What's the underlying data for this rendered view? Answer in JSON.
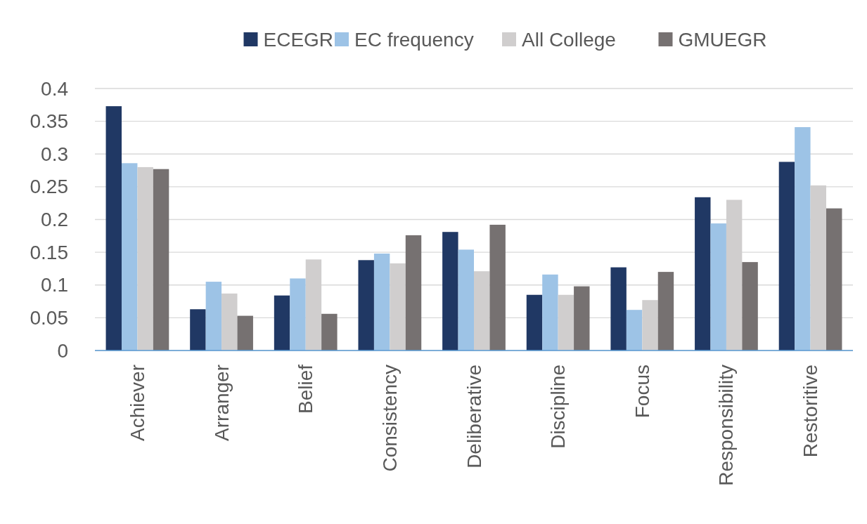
{
  "chart_data": {
    "type": "bar",
    "categories": [
      "Achiever",
      "Arranger",
      "Belief",
      "Consistency",
      "Deliberative",
      "Discipline",
      "Focus",
      "Responsibility",
      "Restoritive"
    ],
    "series": [
      {
        "name": "ECEGR",
        "color": "#203864",
        "values": [
          0.373,
          0.063,
          0.084,
          0.138,
          0.181,
          0.085,
          0.127,
          0.234,
          0.288
        ]
      },
      {
        "name": "EC frequency",
        "color": "#9dc3e6",
        "values": [
          0.286,
          0.105,
          0.11,
          0.148,
          0.154,
          0.116,
          0.062,
          0.194,
          0.341
        ]
      },
      {
        "name": "All College",
        "color": "#d0cece",
        "values": [
          0.28,
          0.087,
          0.139,
          0.133,
          0.121,
          0.085,
          0.077,
          0.23,
          0.252
        ]
      },
      {
        "name": "GMUEGR",
        "color": "#767171",
        "values": [
          0.277,
          0.053,
          0.056,
          0.176,
          0.192,
          0.098,
          0.12,
          0.135,
          0.217
        ]
      }
    ],
    "ylim": [
      0,
      0.4
    ],
    "yticks": [
      0,
      0.05,
      0.1,
      0.15,
      0.2,
      0.25,
      0.3,
      0.35,
      0.4
    ],
    "grid": "y",
    "legend": "top"
  }
}
